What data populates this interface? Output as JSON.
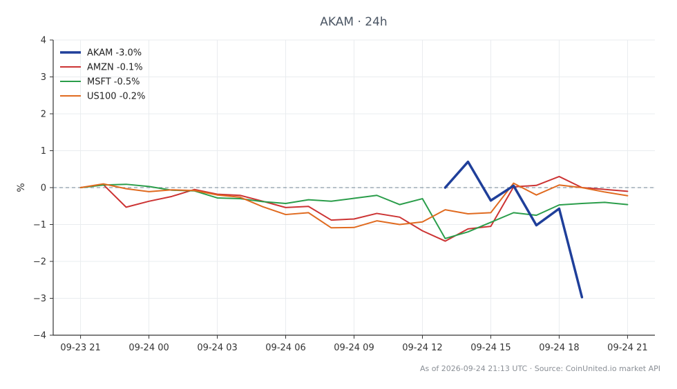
{
  "chart_data": {
    "type": "line",
    "title": "AKAM · 24h",
    "ylabel": "%",
    "xlabel": "",
    "ylim": [
      -4,
      4
    ],
    "yticks": [
      4,
      3,
      2,
      1,
      0,
      -1,
      -2,
      -3,
      -4
    ],
    "ytick_labels": [
      "4",
      "3",
      "2",
      "1",
      "0",
      "−1",
      "−2",
      "−3",
      "−4"
    ],
    "x": [
      0,
      1,
      2,
      3,
      4,
      5,
      6,
      7,
      8,
      9,
      10,
      11,
      12,
      13,
      14,
      15,
      16,
      17,
      18,
      19,
      20,
      21,
      22,
      23,
      24
    ],
    "x_unit": "hours since 09-23 21",
    "xticks": [
      0,
      3,
      6,
      9,
      12,
      15,
      18,
      21,
      24
    ],
    "xtick_labels": [
      "09-23 21",
      "09-24 00",
      "09-24 03",
      "09-24 06",
      "09-24 09",
      "09-24 12",
      "09-24 15",
      "09-24 18",
      "09-24 21"
    ],
    "grid": true,
    "reference_line": 0,
    "legend_position": "top-left",
    "series": [
      {
        "name": "AKAM -3.0%",
        "color": "#1f3f9a",
        "width": 3.5,
        "values": [
          null,
          null,
          null,
          null,
          null,
          null,
          null,
          null,
          null,
          null,
          null,
          null,
          null,
          null,
          null,
          null,
          0.0,
          0.7,
          -0.35,
          0.05,
          -1.02,
          -0.57,
          -2.97,
          null,
          null
        ]
      },
      {
        "name": "AMZN -0.1%",
        "color": "#cc3333",
        "width": 2,
        "values": [
          0.0,
          0.08,
          -0.53,
          -0.37,
          -0.24,
          -0.05,
          -0.18,
          -0.21,
          -0.37,
          -0.54,
          -0.51,
          -0.88,
          -0.85,
          -0.7,
          -0.8,
          -1.17,
          -1.45,
          -1.12,
          -1.05,
          0.02,
          0.06,
          0.3,
          0.0,
          -0.05,
          -0.1
        ]
      },
      {
        "name": "MSFT -0.5%",
        "color": "#2a9d4a",
        "width": 2,
        "values": [
          0.0,
          0.07,
          0.09,
          0.03,
          -0.07,
          -0.09,
          -0.28,
          -0.3,
          -0.38,
          -0.43,
          -0.33,
          -0.37,
          -0.29,
          -0.21,
          -0.46,
          -0.3,
          -1.38,
          -1.2,
          -0.94,
          -0.68,
          -0.75,
          -0.47,
          -0.43,
          -0.4,
          -0.46
        ]
      },
      {
        "name": "US100 -0.2%",
        "color": "#e06a1f",
        "width": 2,
        "values": [
          0.0,
          0.1,
          -0.03,
          -0.11,
          -0.06,
          -0.08,
          -0.2,
          -0.26,
          -0.52,
          -0.73,
          -0.68,
          -1.09,
          -1.08,
          -0.9,
          -1.0,
          -0.93,
          -0.6,
          -0.71,
          -0.68,
          0.12,
          -0.2,
          0.07,
          0.0,
          -0.12,
          -0.22
        ]
      }
    ]
  },
  "footnote": "As of 2026-09-24 21:13 UTC · Source: CoinUnited.io market API"
}
